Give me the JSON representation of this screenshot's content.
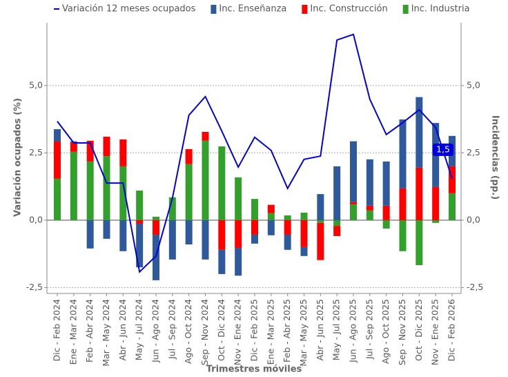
{
  "chart_data": {
    "type": "bar",
    "categories": [
      "Dic - Feb 2024",
      "Ene - Mar 2024",
      "Feb - Abr 2024",
      "Mar - May 2024",
      "Abr - Jun 2024",
      "May - Jul 2024",
      "Jun - Ago 2024",
      "Jul - Sep 2024",
      "Ago - Oct 2024",
      "Sep - Nov 2024",
      "Oct - Dic 2024",
      "Nov - Ene 2024",
      "Dic - Feb 2025",
      "Ene - Mar 2025",
      "Feb - Abr 2025",
      "Mar - May 2025",
      "Abr - Jun 2025",
      "May - Jul 2025",
      "Jun - Ago 2025",
      "Jul - Sep 2025",
      "Ago - Oct 2025",
      "Sep - Nov 2025",
      "Oct - Dic 2025",
      "Nov - Ene 2025",
      "Dic - Feb 2026"
    ],
    "series": [
      {
        "name": "Inc. Industria",
        "color": "#33a02c",
        "axis": "y2",
        "values": [
          1.54,
          2.54,
          2.18,
          2.38,
          2.0,
          1.1,
          0.13,
          0.85,
          2.08,
          2.95,
          2.74,
          1.59,
          0.79,
          0.26,
          0.18,
          0.28,
          -0.1,
          -0.21,
          0.59,
          0.36,
          -0.31,
          -1.15,
          -1.67,
          -0.1,
          1.0
        ]
      },
      {
        "name": "Inc. Construcción",
        "color": "#ff0000",
        "axis": "y2",
        "values": [
          1.38,
          0.36,
          0.77,
          0.72,
          1.0,
          -0.13,
          -0.54,
          0,
          0.56,
          0.33,
          -1.1,
          -1.03,
          -0.54,
          0.31,
          -0.54,
          -1.0,
          -1.38,
          -0.38,
          0.08,
          0.18,
          0.54,
          1.18,
          1.95,
          1.23,
          1.0
        ]
      },
      {
        "name": "Inc. Enseñanza",
        "color": "#2e5a9c",
        "axis": "y2",
        "values": [
          0.46,
          0.03,
          -1.05,
          -0.69,
          -1.15,
          -1.62,
          -1.69,
          -1.46,
          -0.9,
          -1.46,
          -0.9,
          -1.03,
          -0.33,
          -0.56,
          -0.56,
          -0.33,
          0.97,
          2.0,
          2.26,
          1.72,
          1.64,
          2.56,
          2.62,
          2.38,
          1.13
        ]
      },
      {
        "name": "Variación 12 meses ocupados",
        "color": "#0000dd",
        "type": "line",
        "values": [
          3.67,
          2.87,
          2.87,
          1.38,
          1.38,
          -1.92,
          -1.33,
          0.82,
          3.9,
          4.59,
          3.31,
          1.97,
          3.08,
          2.59,
          1.18,
          2.26,
          2.38,
          6.69,
          6.9,
          4.49,
          3.18,
          3.62,
          4.1,
          3.44,
          1.54
        ],
        "value_labels": [
          null,
          null,
          null,
          null,
          null,
          null,
          null,
          null,
          null,
          null,
          null,
          null,
          null,
          null,
          null,
          null,
          null,
          null,
          null,
          null,
          null,
          null,
          null,
          null,
          "1,5"
        ]
      }
    ],
    "ylabel": "Variación ocupados (%)",
    "y2label": "Incidencias (pp.)",
    "xlabel": "Trimestres móviles",
    "ylim": [
      -2.72,
      7.33
    ],
    "yticks": [
      {
        "value": -2.5,
        "label": "-2,5"
      },
      {
        "value": 0,
        "label": "0,0"
      },
      {
        "value": 2.5,
        "label": "2,5"
      },
      {
        "value": 5,
        "label": "5,0"
      }
    ],
    "y2lim": [
      -2.72,
      7.33
    ],
    "y2ticks": [
      {
        "value": -2.5,
        "label": "-2,5"
      },
      {
        "value": 0,
        "label": "0,0"
      },
      {
        "value": 2.5,
        "label": "2,5"
      },
      {
        "value": 5,
        "label": "5,0"
      }
    ],
    "grid": true,
    "legend": "top"
  }
}
